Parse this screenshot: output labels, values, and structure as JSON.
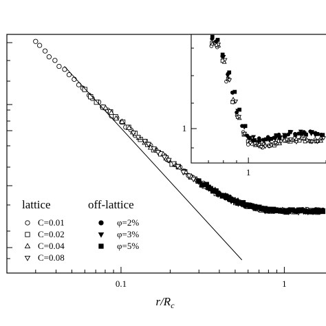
{
  "chart_data": [
    {
      "type": "scatter",
      "role": "main",
      "title": "",
      "xlabel_main": "r/R",
      "xlabel_sub": "c",
      "ylabel": "",
      "x_scale": "log",
      "y_scale": "log",
      "xlim": [
        0.02,
        1.8
      ],
      "x_ticks": [
        {
          "value": 0.1,
          "label": "0.1"
        },
        {
          "value": 1,
          "label": "1"
        }
      ],
      "y_tick_rows": 14,
      "legend": {
        "placement": "bottom-left",
        "lattice_title": "lattice",
        "offlattice_title": "off-lattice",
        "lattice_entries": [
          "C=0.01",
          "C=0.02",
          "C=0.04",
          "C=0.08"
        ],
        "offlattice_entries": [
          "φ=2%",
          "φ=3%",
          "φ=5%"
        ]
      },
      "series": [
        {
          "name": "C=0.01",
          "marker": "circle-open"
        },
        {
          "name": "C=0.02",
          "marker": "square-open"
        },
        {
          "name": "C=0.04",
          "marker": "triangle-up-open"
        },
        {
          "name": "C=0.08",
          "marker": "triangle-down-open"
        },
        {
          "name": "φ=2%",
          "marker": "circle-filled"
        },
        {
          "name": "φ=3%",
          "marker": "triangle-down-filled"
        },
        {
          "name": "φ=5%",
          "marker": "square-filled"
        }
      ],
      "collapse_curve": {
        "x": [
          0.03,
          0.04,
          0.05,
          0.07,
          0.1,
          0.14,
          0.2,
          0.25,
          0.3,
          0.4,
          0.5,
          0.6,
          0.8,
          1.0,
          1.3,
          1.8
        ],
        "y": [
          1.0,
          0.905,
          0.83,
          0.725,
          0.63,
          0.54,
          0.45,
          0.397,
          0.355,
          0.3,
          0.267,
          0.245,
          0.225,
          0.222,
          0.222,
          0.222
        ]
      },
      "power_law_line": {
        "x": [
          0.045,
          0.55
        ],
        "y": [
          0.885,
          0.0
        ]
      }
    },
    {
      "type": "scatter",
      "role": "inset",
      "x_scale": "log",
      "y_scale": "log",
      "x_ticks": [
        {
          "value": 1,
          "label": "1"
        }
      ],
      "y_ticks": [
        {
          "value": 1,
          "label": "1"
        }
      ],
      "collapse_curve": {
        "x": [
          0.75,
          0.8,
          0.85,
          0.9,
          0.95,
          1.0,
          1.1,
          1.2,
          1.4,
          1.6,
          1.8
        ],
        "y": [
          1.0,
          0.8,
          0.55,
          0.35,
          0.18,
          0.08,
          0.05,
          0.07,
          0.11,
          0.12,
          0.12
        ]
      }
    }
  ]
}
